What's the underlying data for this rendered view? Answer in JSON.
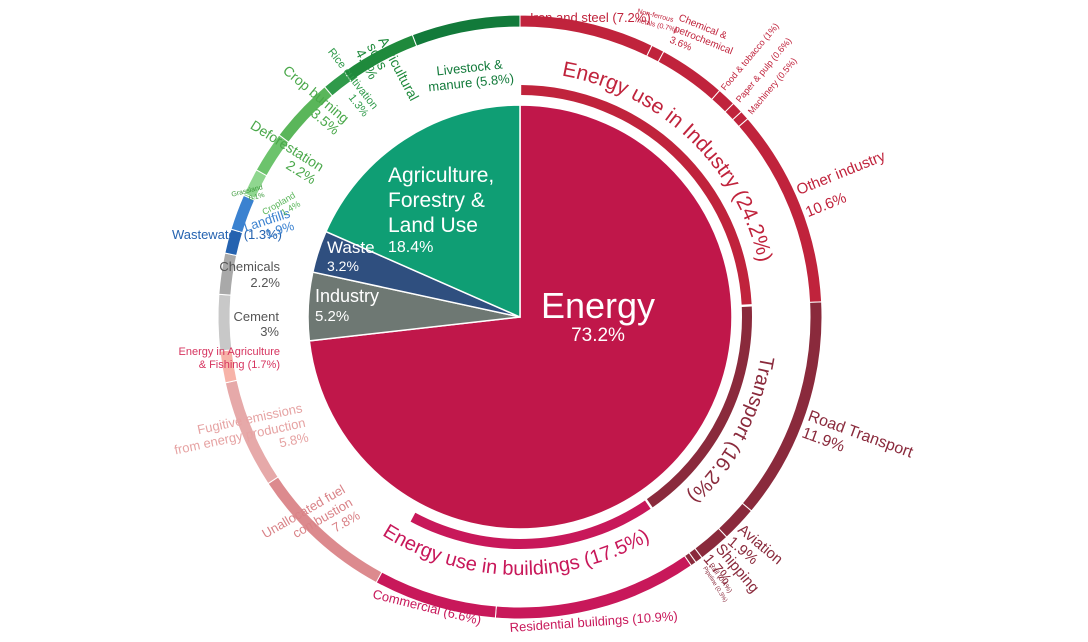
{
  "chart_data": {
    "type": "pie",
    "chart_form": "sunburst",
    "sectors": [
      {
        "name": "Energy",
        "value": 73.2,
        "label": "73.2%",
        "color": "#c0174a"
      },
      {
        "name": "Industry",
        "value": 5.2,
        "label": "5.2%",
        "color": "#6e7873"
      },
      {
        "name": "Waste",
        "value": 3.2,
        "label": "3.2%",
        "color": "#2f4f7f"
      },
      {
        "name": "Agriculture, Forestry & Land Use",
        "label_lines": [
          "Agriculture,",
          "Forestry &",
          "Land Use"
        ],
        "value": 18.4,
        "label": "18.4%",
        "color": "#0f9e74"
      }
    ],
    "energy_subsectors": [
      {
        "name": "Energy use in Industry",
        "value": 24.2,
        "label": "Energy use in Industry (24.2%)",
        "color": "#c0233c"
      },
      {
        "name": "Transport",
        "value": 16.2,
        "label": "Transport (16.2%)",
        "color": "#8a2a3c"
      },
      {
        "name": "Energy use in buildings",
        "value": 17.5,
        "label": "Energy use in buildings (17.5%)",
        "color": "#c8185a"
      },
      {
        "name": "Unallocated fuel combustion",
        "value": 7.8,
        "color": "#dc8a8e"
      },
      {
        "name": "Fugitive emissions from energy production",
        "value": 5.8,
        "color": "#e6a9a9"
      },
      {
        "name": "Energy in Agriculture & Fishing",
        "value": 1.7,
        "color": "#f7b3a8"
      }
    ],
    "outer_ring": [
      {
        "name": "Iron and steel",
        "value": 7.2,
        "color": "#c0233c",
        "label_lines": [
          "Iron and steel (7.2%)"
        ]
      },
      {
        "name": "Non-ferrous metals",
        "value": 0.7,
        "color": "#c0233c",
        "label_lines": [
          "Non-ferrous",
          "metals (0.7%)"
        ]
      },
      {
        "name": "Chemical & petrochemical",
        "value": 3.6,
        "color": "#c0233c",
        "label_lines": [
          "Chemical &",
          "petrochemical",
          "3.6%"
        ]
      },
      {
        "name": "Food & tobacco",
        "value": 1.0,
        "color": "#c0233c",
        "label_lines": [
          "Food & tobacco (1%)"
        ]
      },
      {
        "name": "Paper & pulp",
        "value": 0.6,
        "color": "#c0233c",
        "label_lines": [
          "Paper & pulp (0.6%)"
        ]
      },
      {
        "name": "Machinery",
        "value": 0.5,
        "color": "#c0233c",
        "label_lines": [
          "Machinery (0.5%)"
        ]
      },
      {
        "name": "Other industry",
        "value": 10.6,
        "color": "#c0233c",
        "label_lines": [
          "Other industry",
          "10.6%"
        ]
      },
      {
        "name": "Road Transport",
        "value": 11.9,
        "color": "#8a2a3c",
        "label_lines": [
          "Road Transport",
          "11.9%"
        ]
      },
      {
        "name": "Aviation",
        "value": 1.9,
        "color": "#8a2a3c",
        "label_lines": [
          "Aviation",
          "1.9%"
        ]
      },
      {
        "name": "Shipping",
        "value": 1.7,
        "color": "#8a2a3c",
        "label_lines": [
          "Shipping",
          "1.7%"
        ]
      },
      {
        "name": "Rail",
        "value": 0.4,
        "color": "#8a2a3c",
        "label_lines": [
          "Rail (0.4%)"
        ]
      },
      {
        "name": "Pipeline",
        "value": 0.3,
        "color": "#8a2a3c",
        "label_lines": [
          "Pipeline (0.3%)"
        ]
      },
      {
        "name": "Residential buildings",
        "value": 10.9,
        "color": "#c8185a",
        "label_lines": [
          "Residential buildings (10.9%)"
        ]
      },
      {
        "name": "Commercial",
        "value": 6.6,
        "color": "#c8185a",
        "label_lines": [
          "Commercial (6.6%)"
        ]
      },
      {
        "name": "Unallocated fuel combustion",
        "value": 7.8,
        "color": "#dc8a8e",
        "label_lines": [
          "Unallocated fuel",
          "combustion",
          "7.8%"
        ]
      },
      {
        "name": "Fugitive emissions from energy production",
        "value": 5.8,
        "color": "#e6a9a9",
        "label_lines": [
          "Fugitive emissions",
          "from energy production",
          "5.8%"
        ]
      },
      {
        "name": "Energy in Agriculture & Fishing",
        "value": 1.7,
        "color": "#f7b3a8",
        "label_lines": [
          "Energy in Agriculture",
          "& Fishing (1.7%)"
        ]
      },
      {
        "name": "Cement",
        "value": 3.0,
        "color": "#c8c8c8",
        "label_lines": [
          "Cement",
          "3%"
        ]
      },
      {
        "name": "Chemicals",
        "value": 2.2,
        "color": "#a9a9a9",
        "label_lines": [
          "Chemicals",
          "2.2%"
        ]
      },
      {
        "name": "Wastewater",
        "value": 1.3,
        "color": "#2563b0",
        "label_lines": [
          "Wastewater (1.3%)"
        ]
      },
      {
        "name": "Landfills",
        "value": 1.9,
        "color": "#3b82d0",
        "label_lines": [
          "Landfills",
          "1.9%"
        ]
      },
      {
        "name": "Grassland",
        "value": 0.1,
        "color": "#7ccf7c",
        "label_lines": [
          "Grassland",
          "0.1%"
        ]
      },
      {
        "name": "Cropland",
        "value": 1.4,
        "color": "#8fd68f",
        "label_lines": [
          "Cropland",
          "1.4%"
        ]
      },
      {
        "name": "Deforestation",
        "value": 2.2,
        "color": "#6cc36c",
        "label_lines": [
          "Deforestation",
          "2.2%"
        ]
      },
      {
        "name": "Crop burning",
        "value": 3.5,
        "color": "#5ab65a",
        "label_lines": [
          "Crop burning",
          "3.5%"
        ]
      },
      {
        "name": "Rice cultivation",
        "value": 1.3,
        "color": "#2f9a4a",
        "label_lines": [
          "Rice cultivation",
          "1.3%"
        ]
      },
      {
        "name": "Agricultural soils",
        "value": 4.1,
        "color": "#1f8a3c",
        "label_lines": [
          "Agricultural",
          "soils",
          "4.1%"
        ]
      },
      {
        "name": "Livestock & manure",
        "value": 5.8,
        "color": "#127a3a",
        "label_lines": [
          "Livestock &",
          "manure (5.8%)"
        ]
      }
    ]
  }
}
